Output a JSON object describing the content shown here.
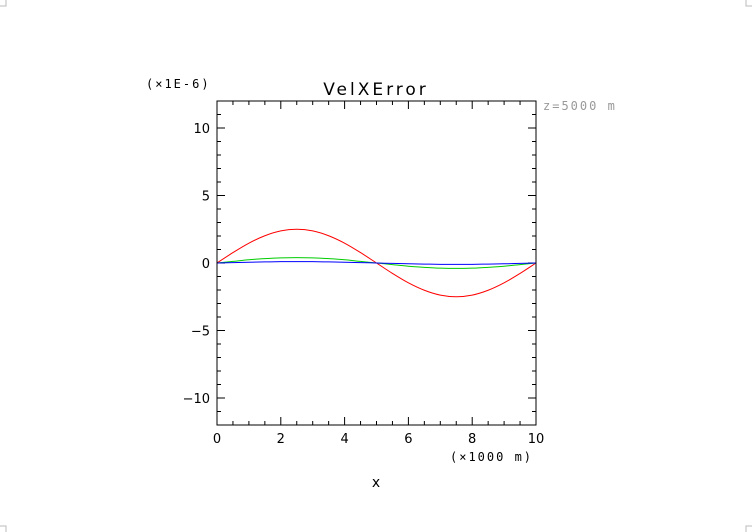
{
  "chart_data": {
    "type": "line",
    "title": "VelXError",
    "y_multiplier_label": "(×1E-6)",
    "annotation": "z=5000 m",
    "xlabel": "x",
    "x_unit_label": "(×1000 m)",
    "xlim": [
      0,
      10
    ],
    "ylim": [
      -12,
      12
    ],
    "x_ticks": [
      0,
      2,
      4,
      6,
      8,
      10
    ],
    "x_tick_labels": [
      "0",
      "2",
      "4",
      "6",
      "8",
      "10"
    ],
    "y_ticks": [
      -10,
      -5,
      0,
      5,
      10
    ],
    "y_tick_labels": [
      "−10",
      "−5",
      "0",
      "5",
      "10"
    ],
    "grid": false,
    "x": [
      0,
      0.5,
      1,
      1.5,
      2,
      2.5,
      3,
      3.5,
      4,
      4.5,
      5,
      5.5,
      6,
      6.5,
      7,
      7.5,
      8,
      8.5,
      9,
      9.5,
      10
    ],
    "series": [
      {
        "color": "#ff0000",
        "values": [
          0,
          0.77,
          1.47,
          2.02,
          2.38,
          2.5,
          2.38,
          2.02,
          1.47,
          0.77,
          0,
          -0.77,
          -1.47,
          -2.02,
          -2.38,
          -2.5,
          -2.38,
          -2.02,
          -1.47,
          -0.77,
          0
        ]
      },
      {
        "color": "#00cc00",
        "values": [
          0,
          0.12,
          0.24,
          0.32,
          0.38,
          0.4,
          0.38,
          0.32,
          0.24,
          0.12,
          0,
          -0.12,
          -0.24,
          -0.32,
          -0.38,
          -0.4,
          -0.38,
          -0.32,
          -0.24,
          -0.12,
          0
        ]
      },
      {
        "color": "#0000ff",
        "values": [
          0,
          0.03,
          0.06,
          0.08,
          0.1,
          0.1,
          0.1,
          0.08,
          0.06,
          0.03,
          0,
          -0.03,
          -0.06,
          -0.08,
          -0.1,
          -0.1,
          -0.1,
          -0.08,
          -0.06,
          -0.03,
          0
        ]
      }
    ]
  }
}
